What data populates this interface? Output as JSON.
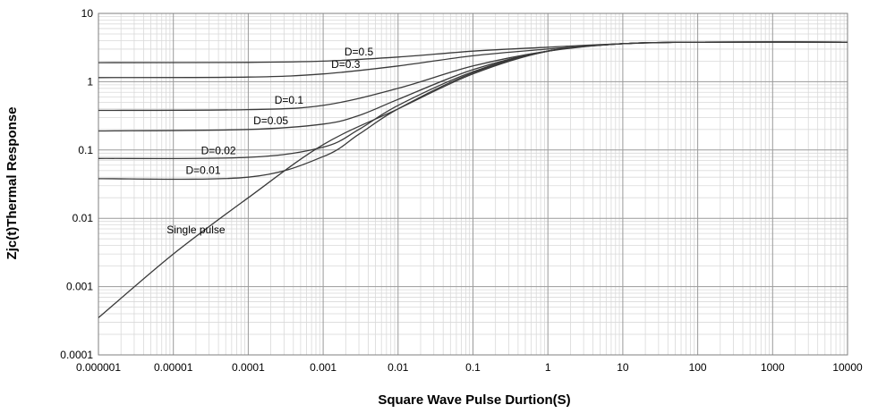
{
  "chart_data": {
    "type": "line",
    "title": "",
    "xlabel": "Square Wave Pulse Durtion(S)",
    "ylabel": "Zjc(t)Thermal Response",
    "xscale": "log",
    "yscale": "log",
    "xlim": [
      1e-06,
      10000
    ],
    "ylim": [
      0.0001,
      10
    ],
    "grid": true,
    "legend": "none",
    "x_tick_labels": [
      "0.000001",
      "0.00001",
      "0.0001",
      "0.001",
      "0.01",
      "0.1",
      "1",
      "10",
      "100",
      "1000",
      "10000"
    ],
    "y_tick_labels": [
      "0.0001",
      "0.001",
      "0.01",
      "0.1",
      "1",
      "10"
    ],
    "series": [
      {
        "name": "D=0.5",
        "x": [
          1e-06,
          0.0001,
          0.001,
          0.01,
          0.1,
          1,
          10,
          100,
          10000
        ],
        "y": [
          1.9,
          1.92,
          2.0,
          2.3,
          2.8,
          3.2,
          3.6,
          3.8,
          3.8
        ]
      },
      {
        "name": "D=0.3",
        "x": [
          1e-06,
          0.0001,
          0.001,
          0.01,
          0.1,
          1,
          10,
          100,
          10000
        ],
        "y": [
          1.15,
          1.17,
          1.3,
          1.7,
          2.4,
          3.0,
          3.6,
          3.8,
          3.8
        ]
      },
      {
        "name": "D=0.1",
        "x": [
          1e-06,
          0.0001,
          0.001,
          0.01,
          0.1,
          1,
          10,
          100,
          10000
        ],
        "y": [
          0.38,
          0.39,
          0.45,
          0.8,
          1.7,
          2.8,
          3.6,
          3.8,
          3.8
        ]
      },
      {
        "name": "D=0.05",
        "x": [
          1e-06,
          0.0001,
          0.001,
          0.003,
          0.01,
          0.1,
          1,
          10,
          100,
          10000
        ],
        "y": [
          0.19,
          0.2,
          0.24,
          0.32,
          0.55,
          1.5,
          2.8,
          3.6,
          3.8,
          3.8
        ]
      },
      {
        "name": "D=0.02",
        "x": [
          1e-06,
          0.0001,
          0.001,
          0.003,
          0.01,
          0.1,
          1,
          10,
          100,
          10000
        ],
        "y": [
          0.075,
          0.078,
          0.11,
          0.2,
          0.45,
          1.4,
          2.8,
          3.6,
          3.8,
          3.8
        ]
      },
      {
        "name": "D=0.01",
        "x": [
          1e-06,
          0.0001,
          0.001,
          0.003,
          0.01,
          0.1,
          1,
          10,
          100,
          10000
        ],
        "y": [
          0.038,
          0.04,
          0.08,
          0.17,
          0.4,
          1.35,
          2.8,
          3.6,
          3.8,
          3.8
        ]
      },
      {
        "name": "Single pulse",
        "x": [
          1e-06,
          1e-05,
          0.0001,
          0.001,
          0.01,
          0.1,
          1,
          10,
          100,
          10000
        ],
        "y": [
          0.00035,
          0.003,
          0.02,
          0.12,
          0.4,
          1.3,
          2.8,
          3.6,
          3.8,
          3.8
        ]
      }
    ],
    "annotations": [
      {
        "text": "D=0.5",
        "series": "D=0.5",
        "at_x": 0.003
      },
      {
        "text": "D=0.3",
        "series": "D=0.3",
        "at_x": 0.002
      },
      {
        "text": "D=0.1",
        "series": "D=0.1",
        "at_x": 0.00035
      },
      {
        "text": "D=0.05",
        "series": "D=0.05",
        "at_x": 0.0002
      },
      {
        "text": "D=0.02",
        "series": "D=0.02",
        "at_x": 4e-05
      },
      {
        "text": "D=0.01",
        "series": "D=0.01",
        "at_x": 2.5e-05
      },
      {
        "text": "Single pulse",
        "series": "Single pulse",
        "at_x": 2e-05
      }
    ]
  }
}
